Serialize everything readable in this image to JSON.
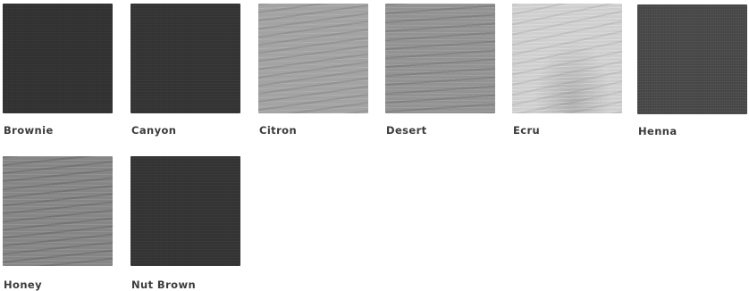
{
  "swatches": [
    {
      "name": "Brownie",
      "tone": "#333333"
    },
    {
      "name": "Canyon",
      "tone": "#353535"
    },
    {
      "name": "Citron",
      "tone": "#a3a3a3"
    },
    {
      "name": "Desert",
      "tone": "#939393"
    },
    {
      "name": "Ecru",
      "tone": "#cfcfcf"
    },
    {
      "name": "Henna",
      "tone": "#4a4a4a"
    },
    {
      "name": "Honey",
      "tone": "#868686"
    },
    {
      "name": "Nut Brown",
      "tone": "#353535"
    }
  ]
}
